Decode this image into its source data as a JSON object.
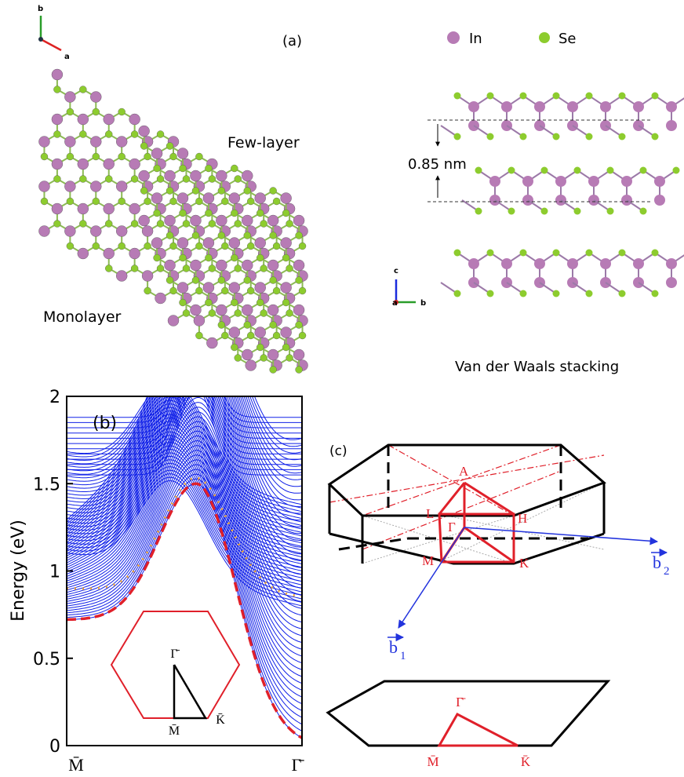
{
  "panel_a": {
    "label": "(a)",
    "axis_b": "b",
    "axis_a": "a",
    "legend": [
      {
        "label": "In",
        "color": "#b77bb5"
      },
      {
        "label": "Se",
        "color": "#8dcc2e"
      }
    ],
    "few_layer": "Few-layer",
    "monolayer": "Monolayer",
    "spacing": "0.85 nm",
    "side_axis_c": "c",
    "side_axis_a": "a",
    "side_axis_b": "b",
    "caption": "Van der Waals stacking"
  },
  "panel_b": {
    "label": "(b)",
    "ylabel": "Energy (eV)",
    "ylim": [
      0,
      2
    ],
    "yticks": [
      0,
      0.5,
      1,
      1.5,
      2
    ],
    "x_left": "M̄",
    "x_right": "Γ̄",
    "inset_gamma": "Γ̄",
    "inset_m": "M̄",
    "inset_k": "K̄"
  },
  "panel_c": {
    "label": "(c)",
    "A": "A",
    "L": "L",
    "H": "H",
    "Gamma": "Γ",
    "M": "M",
    "K": "K",
    "b2": "b",
    "b2_sub": "2",
    "b1": "b",
    "b1_sub": "1",
    "surf_gamma": "Γ̄",
    "surf_m": "M̄",
    "surf_k": "K̄"
  }
}
